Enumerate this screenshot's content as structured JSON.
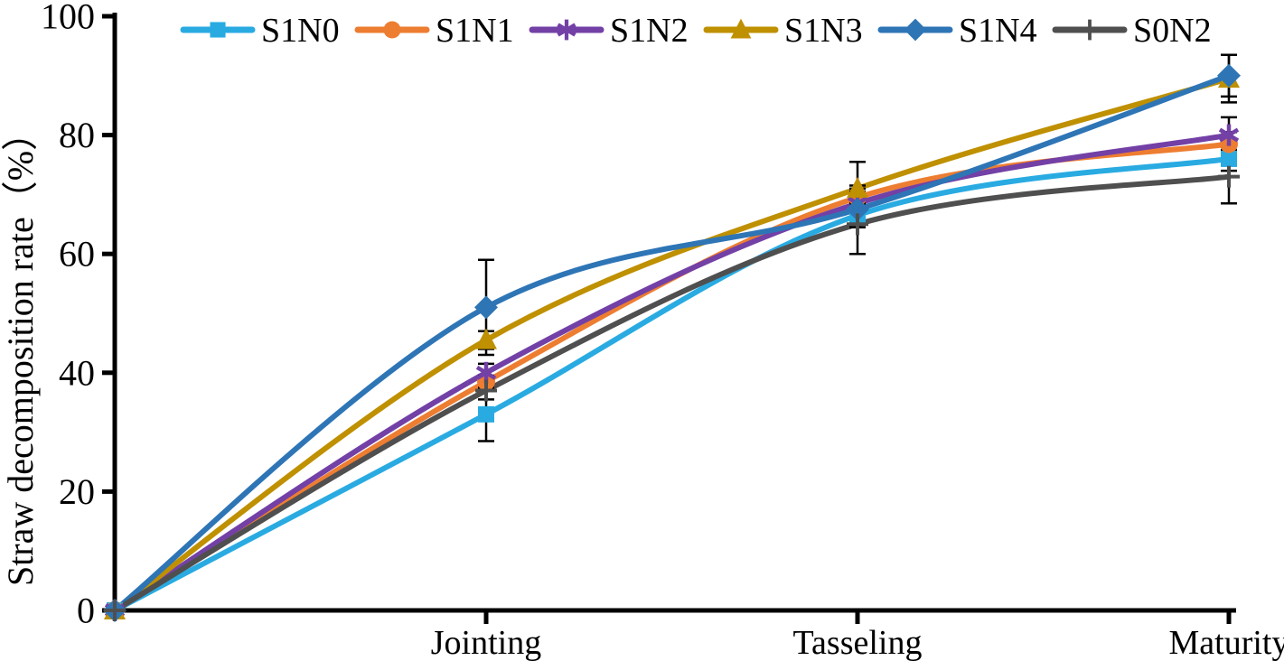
{
  "chart_data": {
    "type": "line",
    "title": "",
    "xlabel": "",
    "ylabel": "Straw decomposition rate（%）",
    "ylim": [
      0,
      100
    ],
    "yticks": [
      0,
      20,
      40,
      60,
      80,
      100
    ],
    "categories": [
      "",
      "Jointing",
      "Tasseling",
      "Maturity"
    ],
    "grid": false,
    "smooth": true,
    "legend_position": "top",
    "axis_color": "#000000",
    "error_bar_color": "#000000",
    "series": [
      {
        "name": "S1N0",
        "color": "#29ABE2",
        "marker": "square",
        "values": [
          0,
          33,
          66.5,
          76
        ],
        "errors": [
          0,
          4.5,
          2,
          2
        ]
      },
      {
        "name": "S1N1",
        "color": "#ED7D31",
        "marker": "circle",
        "values": [
          0,
          38.5,
          69.5,
          78.5
        ],
        "errors": [
          0,
          1,
          2,
          2
        ]
      },
      {
        "name": "S1N2",
        "color": "#7340A6",
        "marker": "asterisk",
        "values": [
          0,
          40,
          68.5,
          80
        ],
        "errors": [
          0,
          1.5,
          2.5,
          3
        ]
      },
      {
        "name": "S1N3",
        "color": "#BF9000",
        "marker": "triangle",
        "values": [
          0,
          45.5,
          71,
          89.5
        ],
        "errors": [
          0,
          1.5,
          4.5,
          4
        ]
      },
      {
        "name": "S1N4",
        "color": "#2E75B6",
        "marker": "diamond",
        "values": [
          0,
          51,
          67.5,
          90
        ],
        "errors": [
          0,
          8,
          3,
          3.5
        ]
      },
      {
        "name": "S0N2",
        "color": "#4F4F4F",
        "marker": "plus",
        "values": [
          0,
          37,
          65,
          73
        ],
        "errors": [
          0,
          1.5,
          5,
          4.5
        ]
      }
    ]
  }
}
